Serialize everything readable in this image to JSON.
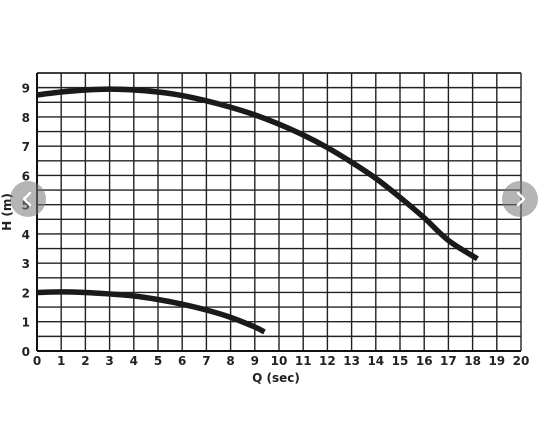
{
  "chart_data": {
    "type": "line",
    "title": "",
    "xlabel": "Q (sec)",
    "ylabel": "H (m)",
    "xlim": [
      0,
      20
    ],
    "ylim": [
      0,
      9.5
    ],
    "xticks": [
      0,
      1,
      2,
      3,
      4,
      5,
      6,
      7,
      8,
      9,
      10,
      11,
      12,
      13,
      14,
      15,
      16,
      17,
      18,
      19,
      20
    ],
    "yticks": [
      0,
      1,
      2,
      3,
      4,
      5,
      6,
      7,
      8,
      9
    ],
    "grid": true,
    "line_color": "#1a1a1a",
    "series": [
      {
        "x": [
          0,
          1,
          2,
          3,
          4,
          5,
          6,
          7,
          8,
          9,
          10,
          11,
          12,
          13,
          14,
          15,
          16,
          17,
          18.2
        ],
        "values": [
          8.75,
          8.85,
          8.92,
          8.95,
          8.92,
          8.85,
          8.73,
          8.55,
          8.33,
          8.07,
          7.75,
          7.38,
          6.95,
          6.45,
          5.9,
          5.25,
          4.55,
          3.78,
          3.15
        ]
      },
      {
        "x": [
          0,
          1,
          2,
          3,
          4,
          5,
          6,
          7,
          8,
          9,
          9.4
        ],
        "values": [
          2.0,
          2.02,
          2.0,
          1.95,
          1.88,
          1.76,
          1.6,
          1.4,
          1.15,
          0.82,
          0.65
        ]
      }
    ]
  },
  "carousel": {
    "prev_icon": "chevron-left-icon",
    "next_icon": "chevron-right-icon",
    "button_color": "#7a7a7a"
  }
}
